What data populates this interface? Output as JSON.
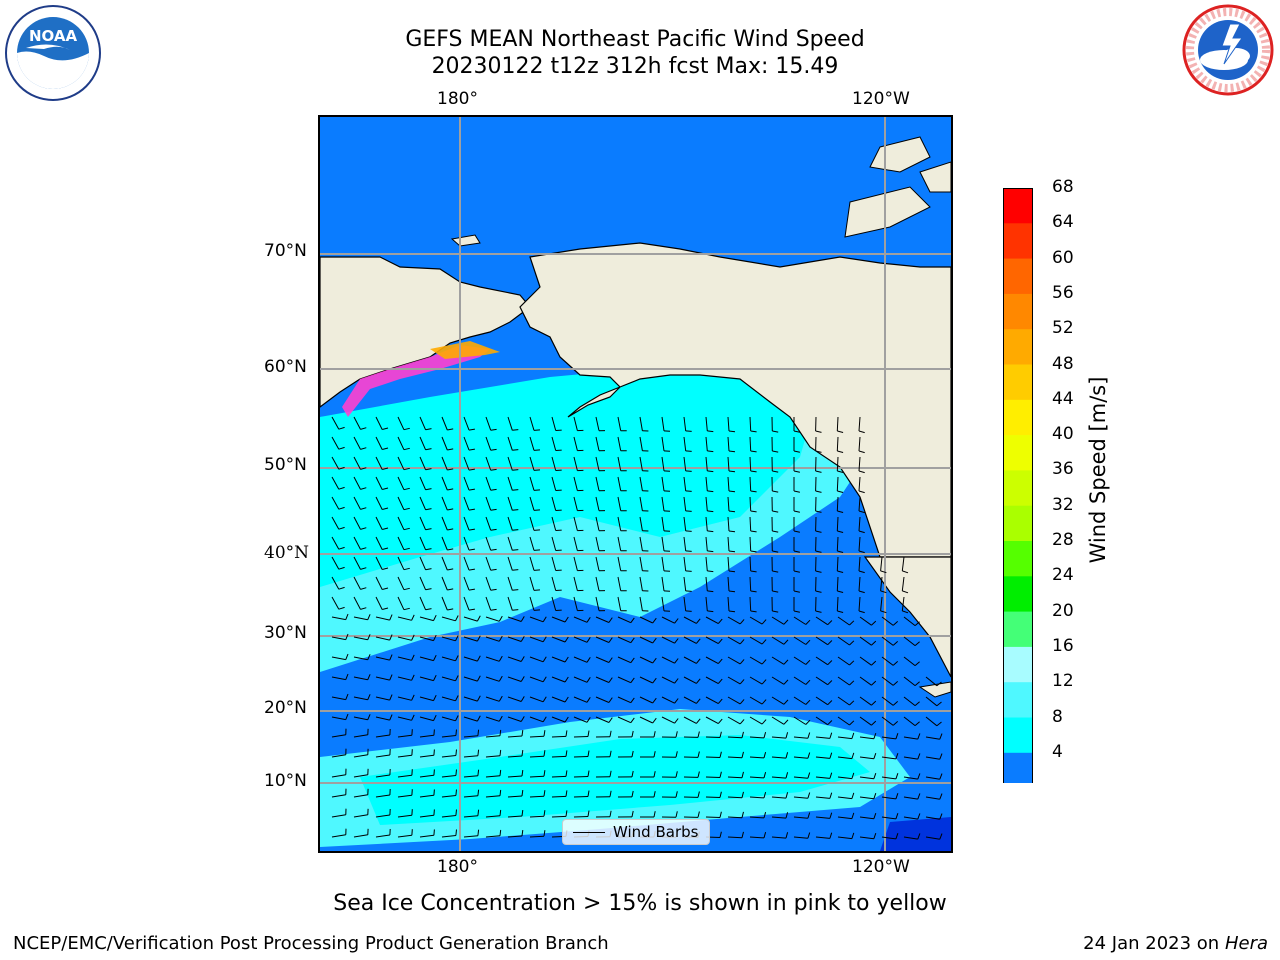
{
  "title": {
    "line1": "GEFS MEAN Northeast Pacific Wind Speed",
    "line2": "20230122 t12z 312h fcst   Max: 15.49"
  },
  "logos": {
    "left": {
      "name": "noaa-logo",
      "text": "NOAA"
    },
    "right": {
      "name": "nws-logo",
      "text": "NATIONAL WEATHER SERVICE"
    }
  },
  "map": {
    "top_lon_labels": [
      "180°",
      "120°W"
    ],
    "bottom_lon_labels": [
      "180°",
      "120°W"
    ],
    "lat_labels": [
      "70°N",
      "60°N",
      "50°N",
      "40°N",
      "30°N",
      "20°N",
      "10°N"
    ],
    "legend_label": "Wind Barbs",
    "colors": {
      "ocean_low": "#0a7cff",
      "ocean_mid": "#00ffff",
      "ocean_mid2": "#4ff8ff",
      "ocean_high": "#a8fcff",
      "land": "#efeddc",
      "sea_ice": "#ff40d0"
    }
  },
  "colorbar": {
    "title": "Wind Speed [m/s]",
    "ticks": [
      "68",
      "64",
      "60",
      "56",
      "52",
      "48",
      "44",
      "40",
      "36",
      "32",
      "28",
      "24",
      "20",
      "16",
      "12",
      "8",
      "4"
    ],
    "colors_top_to_bottom": [
      "#ff0000",
      "#ff3300",
      "#ff6600",
      "#ff8800",
      "#ffaa00",
      "#ffcc00",
      "#ffee00",
      "#eeff00",
      "#ccff00",
      "#aaff00",
      "#55ff00",
      "#00ee00",
      "#44ff77",
      "#a8fcff",
      "#4ff8ff",
      "#00ffff",
      "#0a7cff"
    ],
    "under_color": "#0000ff"
  },
  "caption": "Sea Ice Concentration > 15% is shown in pink to yellow",
  "footer": {
    "left": "NCEP/EMC/Verification Post Processing Product Generation Branch",
    "right_date": "24 Jan 2023 on ",
    "right_host": "Hera"
  }
}
